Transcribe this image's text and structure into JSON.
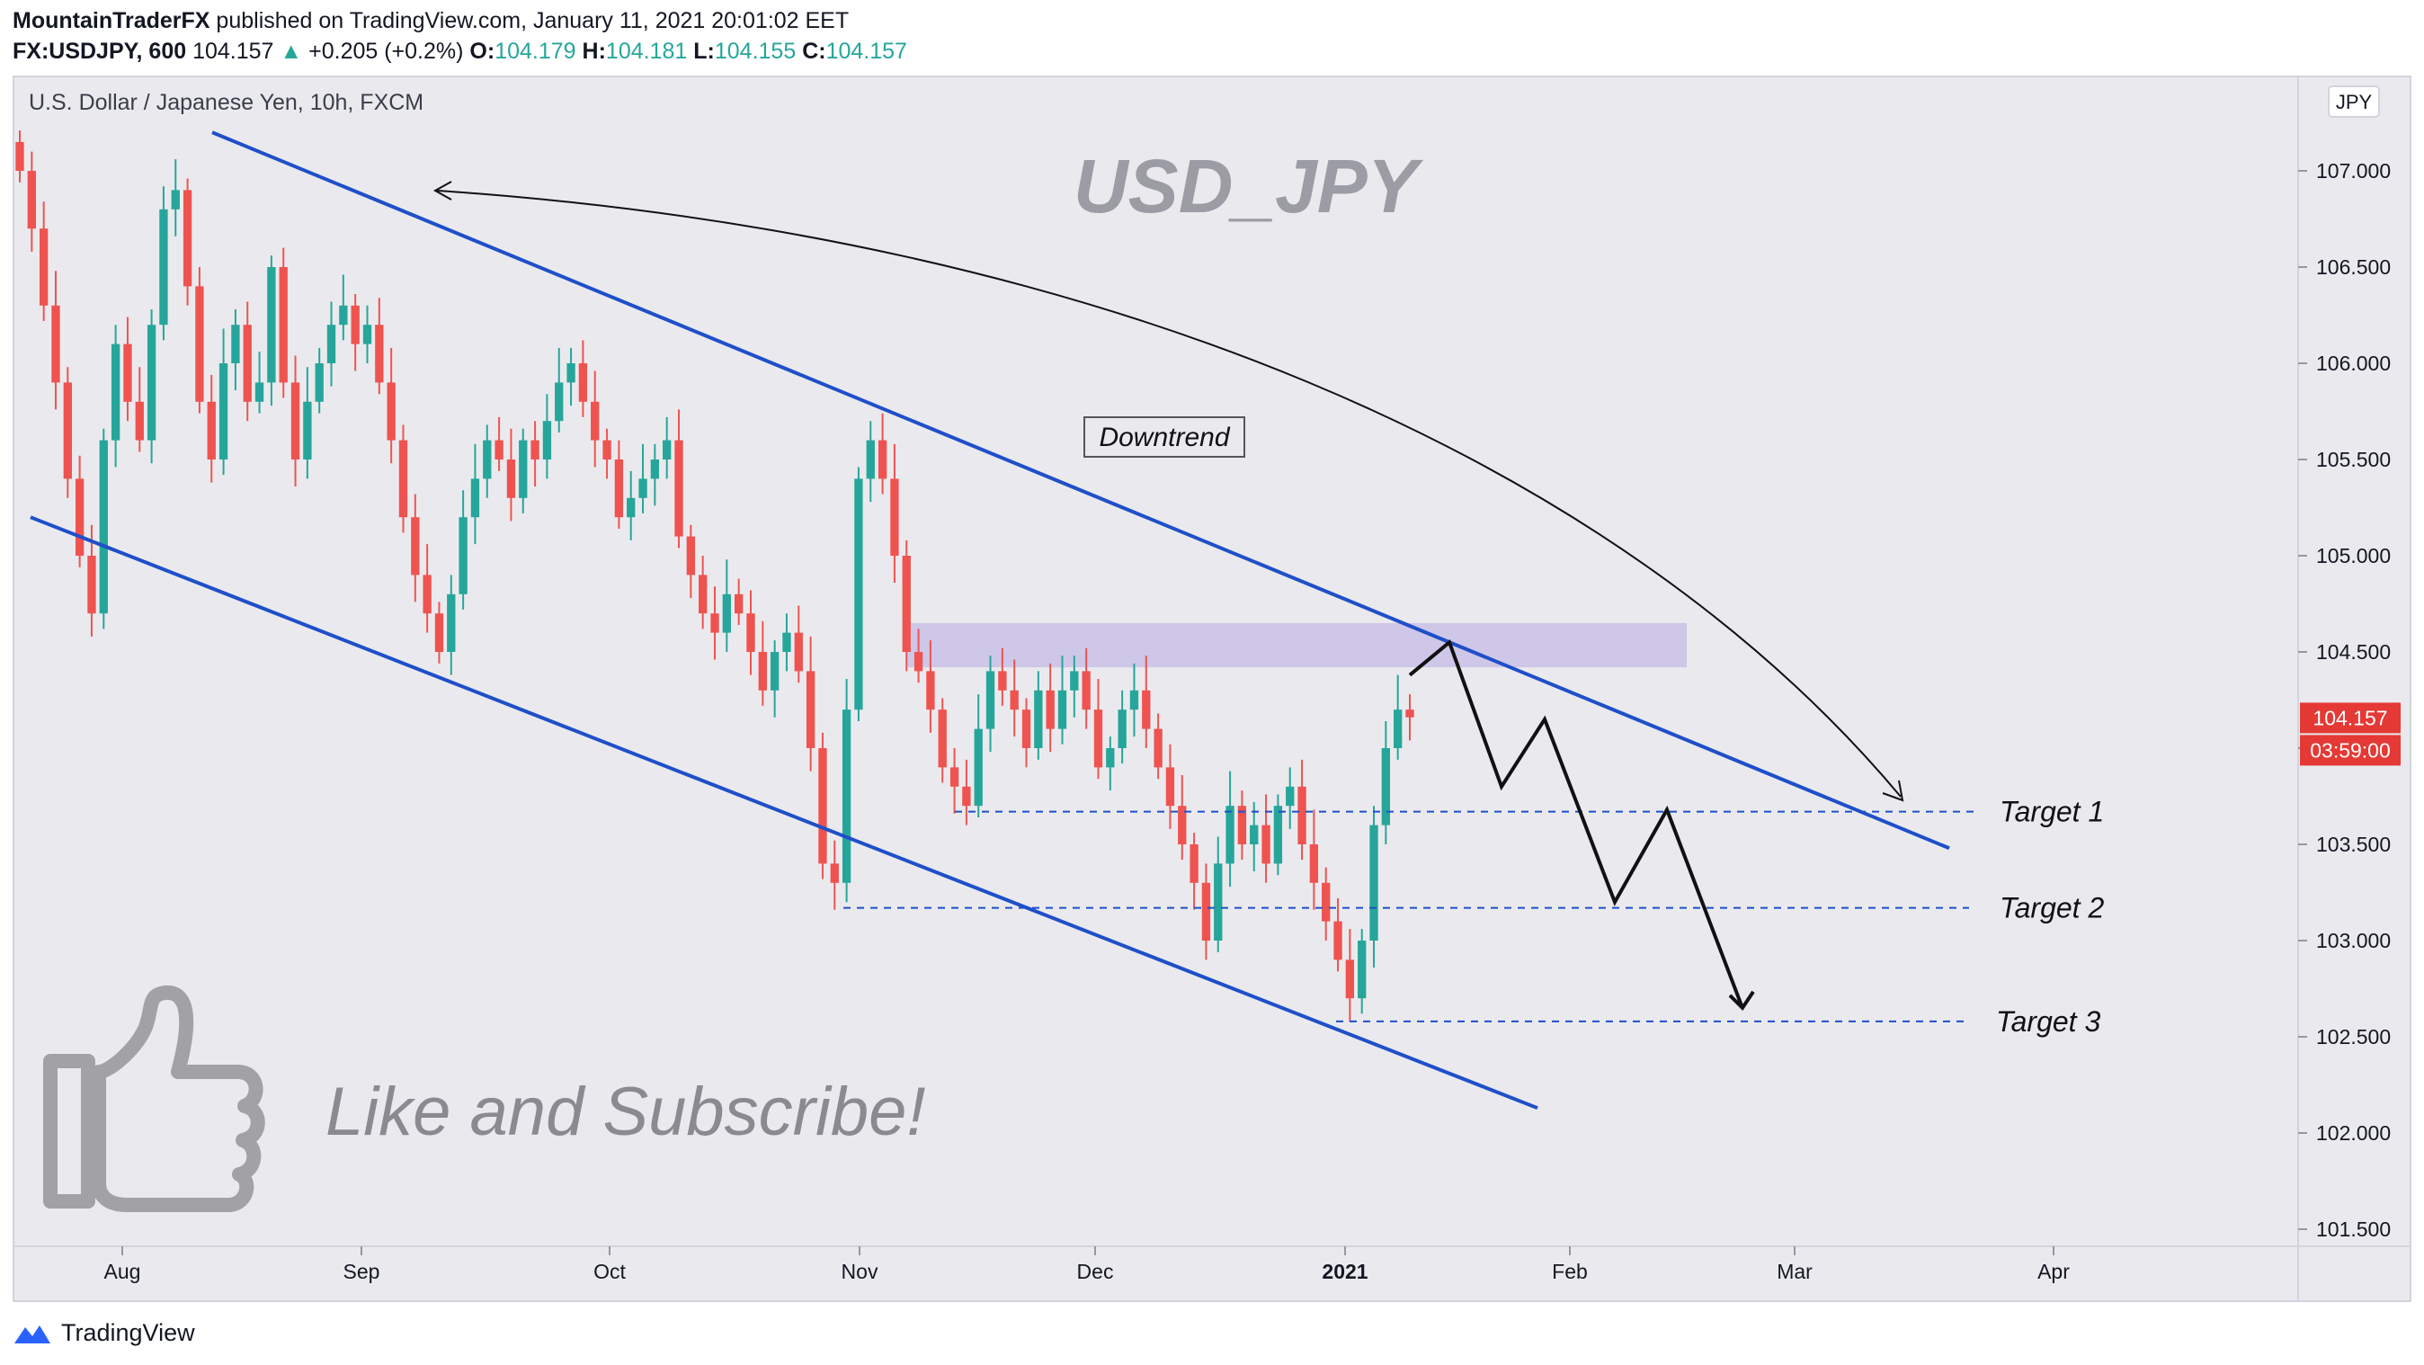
{
  "header": {
    "author": "MountainTraderFX",
    "published": "published on TradingView.com, January 11, 2021 20:01:02 EET",
    "symbol": "FX:USDJPY, 600",
    "last": "104.157",
    "change": "+0.205 (+0.2%)",
    "o_label": "O:",
    "o_value": "104.179",
    "h_label": "H:",
    "h_value": "104.181",
    "l_label": "L:",
    "l_value": "104.155",
    "c_label": "C:",
    "c_value": "104.157"
  },
  "footer": {
    "brand": "TradingView"
  },
  "colors": {
    "up": "#26a69a",
    "down": "#ef5350",
    "channel": "#1f4fc9",
    "zone": "#c9c1e6",
    "price_tag": "#e53935",
    "pane_bg": "#eaeaee"
  },
  "chart_data": {
    "type": "candlestick",
    "instrument_title": "U.S. Dollar / Japanese Yen, 10h, FXCM",
    "watermark": "USD_JPY",
    "currency_badge": "JPY",
    "y_axis": {
      "ticks": [
        "107.000",
        "106.500",
        "106.000",
        "105.500",
        "105.000",
        "104.500",
        "104.000",
        "103.500",
        "103.000",
        "102.500",
        "102.000",
        "101.500"
      ],
      "ylim": [
        101.3,
        107.35
      ]
    },
    "x_axis": {
      "ticks": [
        "Aug",
        "Sep",
        "Oct",
        "Nov",
        "Dec",
        "2021",
        "Feb",
        "Mar",
        "Apr"
      ]
    },
    "last_price_tag": "104.157",
    "countdown_tag": "03:59:00",
    "annotations": {
      "downtrend_label": "Downtrend",
      "targets": [
        {
          "label": "Target 1",
          "price": 103.67
        },
        {
          "label": "Target 2",
          "price": 103.17
        },
        {
          "label": "Target 3",
          "price": 102.58
        }
      ],
      "resistance_zone": [
        104.42,
        104.65
      ],
      "cta": "Like and Subscribe!"
    },
    "upper_channel": [
      [
        0.0,
        107.2
      ],
      [
        1.0,
        103.48
      ]
    ],
    "lower_channel": [
      [
        0.0,
        105.2
      ],
      [
        1.0,
        102.13
      ]
    ],
    "path_waypoints": [
      104.38,
      104.55,
      103.8,
      104.15,
      103.2,
      103.68,
      102.65
    ],
    "close_series": [
      107.0,
      106.7,
      106.3,
      105.9,
      105.4,
      105.0,
      104.7,
      105.6,
      106.1,
      105.8,
      105.6,
      106.2,
      106.8,
      106.9,
      106.4,
      105.8,
      105.5,
      106.0,
      106.2,
      105.8,
      105.9,
      106.5,
      105.9,
      105.5,
      105.8,
      106.0,
      106.2,
      106.3,
      106.1,
      106.2,
      105.9,
      105.6,
      105.2,
      104.9,
      104.7,
      104.5,
      104.8,
      105.2,
      105.4,
      105.6,
      105.5,
      105.3,
      105.6,
      105.5,
      105.7,
      105.9,
      106.0,
      105.8,
      105.6,
      105.5,
      105.2,
      105.3,
      105.4,
      105.5,
      105.6,
      105.1,
      104.9,
      104.7,
      104.6,
      104.8,
      104.7,
      104.5,
      104.3,
      104.5,
      104.6,
      104.4,
      104.0,
      103.4,
      103.3,
      104.2,
      105.4,
      105.6,
      105.4,
      105.0,
      104.5,
      104.4,
      104.2,
      103.9,
      103.8,
      103.7,
      104.1,
      104.4,
      104.3,
      104.2,
      104.0,
      104.3,
      104.1,
      104.3,
      104.4,
      104.2,
      103.9,
      104.0,
      104.2,
      104.3,
      104.1,
      103.9,
      103.7,
      103.5,
      103.3,
      103.0,
      103.4,
      103.7,
      103.5,
      103.6,
      103.4,
      103.7,
      103.8,
      103.5,
      103.3,
      103.1,
      102.9,
      102.7,
      103.0,
      103.6,
      104.0,
      104.2,
      104.16
    ]
  }
}
